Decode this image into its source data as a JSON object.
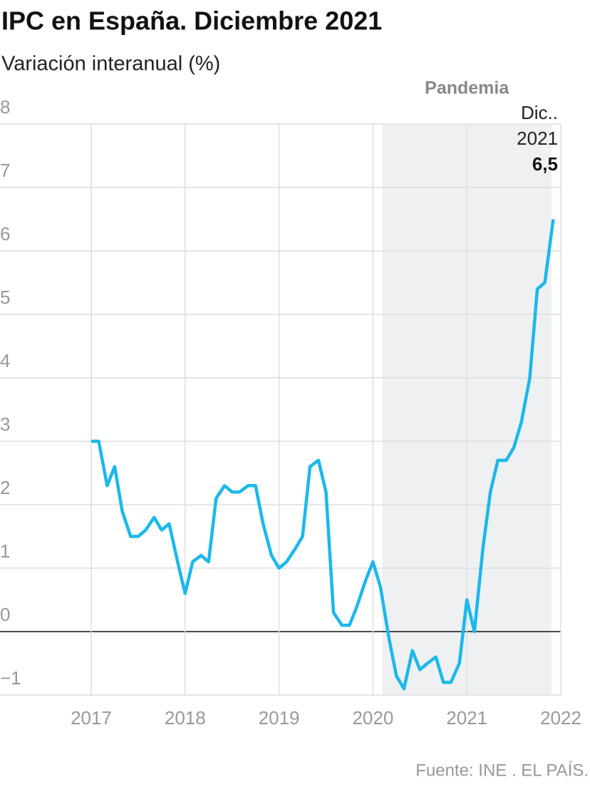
{
  "chart_data": {
    "type": "line",
    "title": "IPC en España. Diciembre 2021",
    "subtitle": "Variación interanual (%)",
    "source": "Fuente: INE . EL PAÍS.",
    "x": [
      2017.0,
      2017.08,
      2017.17,
      2017.25,
      2017.33,
      2017.42,
      2017.5,
      2017.58,
      2017.67,
      2017.75,
      2017.83,
      2017.92,
      2018.0,
      2018.08,
      2018.17,
      2018.25,
      2018.33,
      2018.42,
      2018.5,
      2018.58,
      2018.67,
      2018.75,
      2018.83,
      2018.92,
      2019.0,
      2019.08,
      2019.17,
      2019.25,
      2019.33,
      2019.42,
      2019.5,
      2019.58,
      2019.67,
      2019.75,
      2019.83,
      2019.92,
      2020.0,
      2020.08,
      2020.17,
      2020.25,
      2020.33,
      2020.42,
      2020.5,
      2020.58,
      2020.67,
      2020.75,
      2020.83,
      2020.92,
      2021.0,
      2021.08,
      2021.17,
      2021.25,
      2021.33,
      2021.42,
      2021.5,
      2021.58,
      2021.67,
      2021.75,
      2021.83,
      2021.92
    ],
    "series": [
      {
        "name": "IPC",
        "color": "#1bb8ec",
        "values": [
          3.0,
          3.0,
          2.3,
          2.6,
          1.9,
          1.5,
          1.5,
          1.6,
          1.8,
          1.6,
          1.7,
          1.1,
          0.6,
          1.1,
          1.2,
          1.1,
          2.1,
          2.3,
          2.2,
          2.2,
          2.3,
          2.3,
          1.7,
          1.2,
          1.0,
          1.1,
          1.3,
          1.5,
          2.6,
          2.7,
          2.2,
          0.3,
          0.1,
          0.1,
          0.4,
          0.8,
          1.1,
          0.7,
          -0.1,
          -0.7,
          -0.9,
          -0.3,
          -0.6,
          -0.5,
          -0.4,
          -0.8,
          -0.8,
          -0.5,
          0.5,
          0.0,
          1.3,
          2.2,
          2.7,
          2.7,
          2.9,
          3.3,
          4.0,
          5.4,
          5.5,
          6.5
        ]
      }
    ],
    "xlim": [
      2017,
      2022
    ],
    "xticks": [
      2017,
      2018,
      2019,
      2020,
      2021,
      2022
    ],
    "ylim": [
      -1,
      8
    ],
    "yticks": [
      {
        "value": -1,
        "label": "−1"
      },
      0,
      1,
      2,
      3,
      4,
      5,
      6,
      7,
      8
    ],
    "grid": true,
    "shaded_region": {
      "label": "Pandemia",
      "xlim": [
        2020.1,
        2021.9
      ],
      "color": "#eef0f2"
    },
    "end_label": {
      "lines": [
        "Dic..",
        "2021"
      ],
      "value_label": "6,5"
    }
  }
}
